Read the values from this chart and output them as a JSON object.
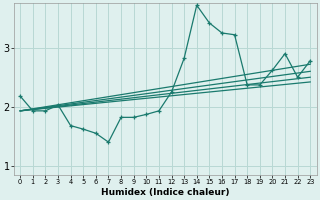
{
  "xlabel": "Humidex (Indice chaleur)",
  "bg_color": "#dff0ee",
  "line_color": "#1a7a6e",
  "grid_color": "#b8d8d4",
  "xlim": [
    -0.5,
    23.5
  ],
  "ylim": [
    0.85,
    3.75
  ],
  "yticks": [
    1,
    2,
    3
  ],
  "xtick_labels": [
    "0",
    "1",
    "2",
    "3",
    "4",
    "5",
    "6",
    "7",
    "8",
    "9",
    "10",
    "11",
    "12",
    "13",
    "14",
    "15",
    "16",
    "17",
    "18",
    "19",
    "20",
    "21",
    "22",
    "23"
  ],
  "series1_x": [
    0,
    1,
    2,
    3,
    4,
    5,
    6,
    7,
    8,
    9,
    10,
    11,
    12,
    13,
    14,
    15,
    16,
    17,
    18,
    19,
    20,
    21,
    22,
    23
  ],
  "series1_y": [
    2.18,
    1.93,
    1.93,
    2.03,
    1.68,
    1.62,
    1.55,
    1.4,
    1.82,
    1.82,
    1.87,
    1.93,
    2.25,
    2.82,
    3.72,
    3.42,
    3.25,
    3.22,
    2.37,
    2.37,
    2.62,
    2.9,
    2.5,
    2.78
  ],
  "trend_lines": [
    {
      "x0": 0,
      "y0": 1.93,
      "x1": 23,
      "y1": 2.72
    },
    {
      "x0": 0,
      "y0": 1.93,
      "x1": 23,
      "y1": 2.6
    },
    {
      "x0": 0,
      "y0": 1.93,
      "x1": 23,
      "y1": 2.5
    },
    {
      "x0": 0,
      "y0": 1.93,
      "x1": 23,
      "y1": 2.42
    }
  ]
}
